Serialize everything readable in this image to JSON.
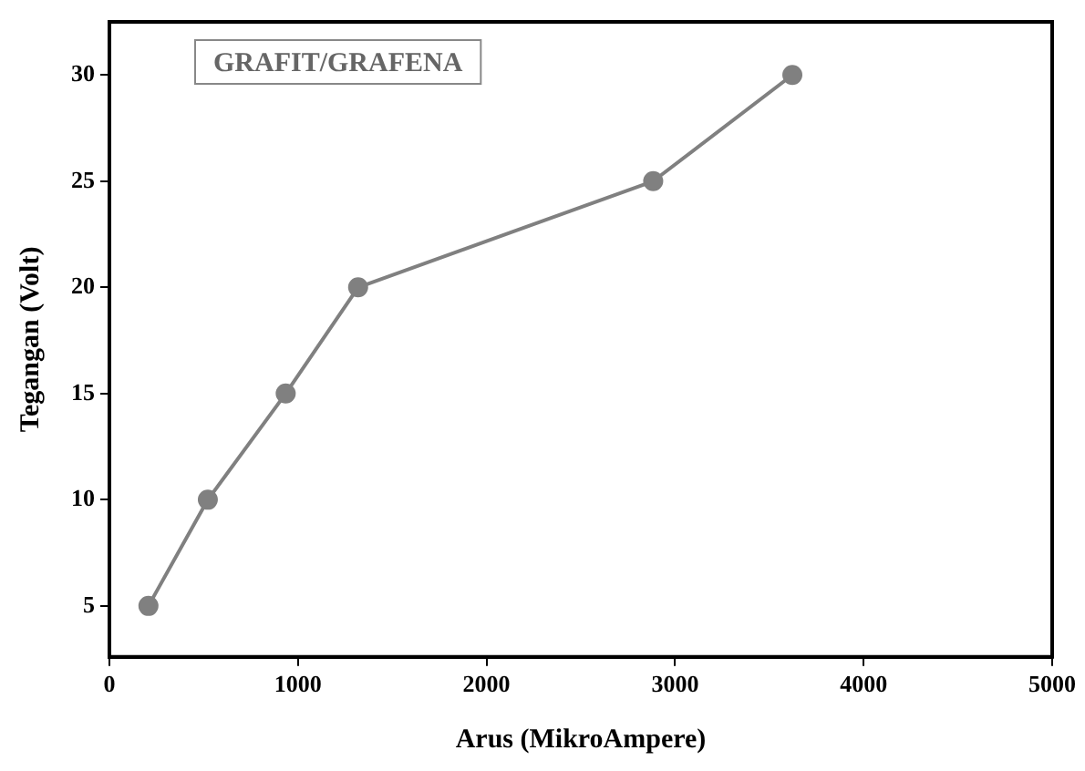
{
  "chart_data": {
    "type": "line",
    "xlabel": "Arus (MikroAmpere)",
    "ylabel": "Tegangan (Volt)",
    "annotations": [
      "GRAFIT/GRAFENA"
    ],
    "x": [
      207,
      522,
      935,
      1319,
      2884,
      3622
    ],
    "series": [
      {
        "color": "#808080",
        "values": [
          5,
          10,
          15,
          20,
          25,
          30
        ]
      }
    ],
    "xlim": [
      0,
      5000
    ],
    "xticks": [
      0,
      1000,
      2000,
      3000,
      4000,
      5000
    ],
    "ylim": [
      2.6,
      32.5
    ],
    "yticks": [
      5,
      10,
      15,
      20,
      25,
      30
    ],
    "grid": false,
    "legend": false,
    "marker": "circle",
    "line_style": "solid"
  }
}
